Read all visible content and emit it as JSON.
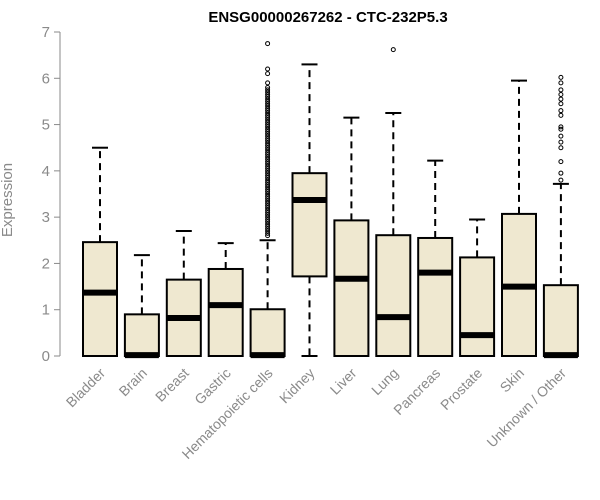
{
  "chart_data": {
    "type": "boxplot",
    "title": "ENSG00000267262 - CTC-232P5.3",
    "xlabel": "",
    "ylabel": "Expression",
    "ylim": [
      0,
      7
    ],
    "yticks": [
      "0",
      "1",
      "2",
      "3",
      "4",
      "5",
      "6",
      "7"
    ],
    "grid": false,
    "colors": {
      "box_fill": "#efe8d0",
      "stroke": "#000000",
      "axis_text": "#8a8a8a"
    },
    "categories": [
      "Bladder",
      "Brain",
      "Breast",
      "Gastric",
      "Hematopoietic cells",
      "Kidney",
      "Liver",
      "Lung",
      "Pancreas",
      "Prostate",
      "Skin",
      "Unknown / Other"
    ],
    "boxes": [
      {
        "min": 0,
        "q1": 0,
        "median": 1.37,
        "q3": 2.46,
        "max": 4.5,
        "outliers": []
      },
      {
        "min": 0,
        "q1": 0,
        "median": 0.02,
        "q3": 0.9,
        "max": 2.18,
        "outliers": []
      },
      {
        "min": 0,
        "q1": 0,
        "median": 0.82,
        "q3": 1.65,
        "max": 2.7,
        "outliers": []
      },
      {
        "min": 0,
        "q1": 0,
        "median": 1.1,
        "q3": 1.88,
        "max": 2.44,
        "outliers": []
      },
      {
        "min": 0,
        "q1": 0,
        "median": 0.02,
        "q3": 1.01,
        "max": 2.5,
        "outliers": [
          2.6,
          2.65,
          2.7,
          2.75,
          2.8,
          2.85,
          2.9,
          2.95,
          3.0,
          3.05,
          3.1,
          3.15,
          3.2,
          3.25,
          3.3,
          3.35,
          3.4,
          3.45,
          3.5,
          3.55,
          3.6,
          3.65,
          3.7,
          3.75,
          3.8,
          3.85,
          3.9,
          3.95,
          4.0,
          4.05,
          4.1,
          4.15,
          4.2,
          4.25,
          4.3,
          4.35,
          4.4,
          4.45,
          4.5,
          4.55,
          4.6,
          4.65,
          4.7,
          4.75,
          4.8,
          4.85,
          4.9,
          4.95,
          5.0,
          5.05,
          5.1,
          5.15,
          5.2,
          5.25,
          5.3,
          5.35,
          5.4,
          5.45,
          5.5,
          5.55,
          5.6,
          5.65,
          5.7,
          5.75,
          5.8,
          5.9,
          6.1,
          6.2,
          6.75
        ]
      },
      {
        "min": 0,
        "q1": 1.72,
        "median": 3.37,
        "q3": 3.95,
        "max": 6.3,
        "outliers": []
      },
      {
        "min": 0,
        "q1": 0,
        "median": 1.67,
        "q3": 2.93,
        "max": 5.15,
        "outliers": []
      },
      {
        "min": 0,
        "q1": 0,
        "median": 0.84,
        "q3": 2.61,
        "max": 5.25,
        "outliers": [
          6.62
        ]
      },
      {
        "min": 0,
        "q1": 0,
        "median": 1.8,
        "q3": 2.55,
        "max": 4.22,
        "outliers": []
      },
      {
        "min": 0,
        "q1": 0,
        "median": 0.45,
        "q3": 2.13,
        "max": 2.95,
        "outliers": []
      },
      {
        "min": 0,
        "q1": 0,
        "median": 1.5,
        "q3": 3.07,
        "max": 5.95,
        "outliers": []
      },
      {
        "min": 0,
        "q1": 0,
        "median": 0.02,
        "q3": 1.53,
        "max": 3.72,
        "outliers": [
          3.8,
          3.95,
          4.2,
          4.5,
          4.62,
          4.75,
          4.9,
          4.95,
          5.2,
          5.3,
          5.45,
          5.55,
          5.65,
          5.75,
          5.9,
          6.02
        ]
      }
    ]
  }
}
